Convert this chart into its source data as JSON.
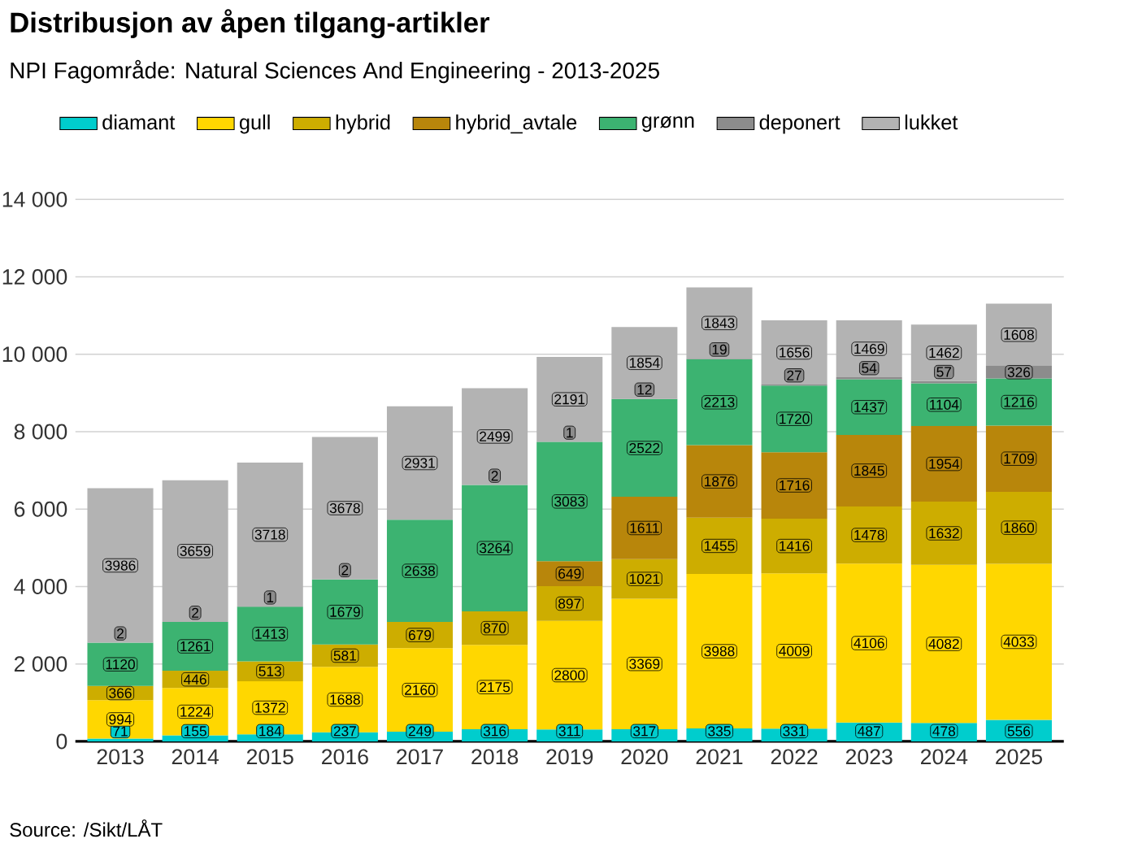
{
  "chart_data": {
    "type": "bar",
    "stacked": true,
    "data_labels": true,
    "grid": "y",
    "legend": "top",
    "title": "Distribusjon av åpen tilgang-artikler",
    "subtitle": "NPI Fagområde: Natural Sciences And Engineering - 2013-2025",
    "annotations": [
      "Source: /Sikt/LÅT"
    ],
    "categories": [
      "2013",
      "2014",
      "2015",
      "2016",
      "2017",
      "2018",
      "2019",
      "2020",
      "2021",
      "2022",
      "2023",
      "2024",
      "2025"
    ],
    "ylim": [
      0,
      14000
    ],
    "yticks": [
      {
        "value": 0,
        "label": "0"
      },
      {
        "value": 2000,
        "label": "2 000"
      },
      {
        "value": 4000,
        "label": "4 000"
      },
      {
        "value": 6000,
        "label": "6 000"
      },
      {
        "value": 8000,
        "label": "8 000"
      },
      {
        "value": 10000,
        "label": "10 000"
      },
      {
        "value": 12000,
        "label": "12 000"
      },
      {
        "value": 14000,
        "label": "14 000"
      }
    ],
    "series": [
      {
        "name": "diamant",
        "color": "#00cdcd",
        "values": [
          71,
          155,
          184,
          237,
          249,
          316,
          311,
          317,
          335,
          331,
          487,
          478,
          556
        ]
      },
      {
        "name": "gull",
        "color": "#ffd700",
        "values": [
          994,
          1224,
          1372,
          1688,
          2160,
          2175,
          2800,
          3369,
          3988,
          4009,
          4106,
          4082,
          4033
        ]
      },
      {
        "name": "hybrid",
        "color": "#cdad00",
        "values": [
          366,
          446,
          513,
          581,
          679,
          870,
          897,
          1021,
          1455,
          1416,
          1478,
          1632,
          1860
        ]
      },
      {
        "name": "hybrid_avtale",
        "color": "#b8860b",
        "values": [
          null,
          null,
          null,
          null,
          null,
          null,
          649,
          1611,
          1876,
          1716,
          1845,
          1954,
          1709
        ]
      },
      {
        "name": "grønn",
        "color": "#3cb371",
        "values": [
          1120,
          1261,
          1413,
          1679,
          2638,
          3264,
          3083,
          2522,
          2213,
          1720,
          1437,
          1104,
          1216
        ]
      },
      {
        "name": "deponert",
        "color": "#8c8c8c",
        "values": [
          2,
          2,
          1,
          2,
          null,
          2,
          1,
          12,
          19,
          27,
          54,
          57,
          326
        ]
      },
      {
        "name": "lukket",
        "color": "#b3b3b3",
        "values": [
          3986,
          3659,
          3718,
          3678,
          2931,
          2499,
          2191,
          1854,
          1843,
          1656,
          1469,
          1462,
          1608
        ]
      }
    ]
  }
}
